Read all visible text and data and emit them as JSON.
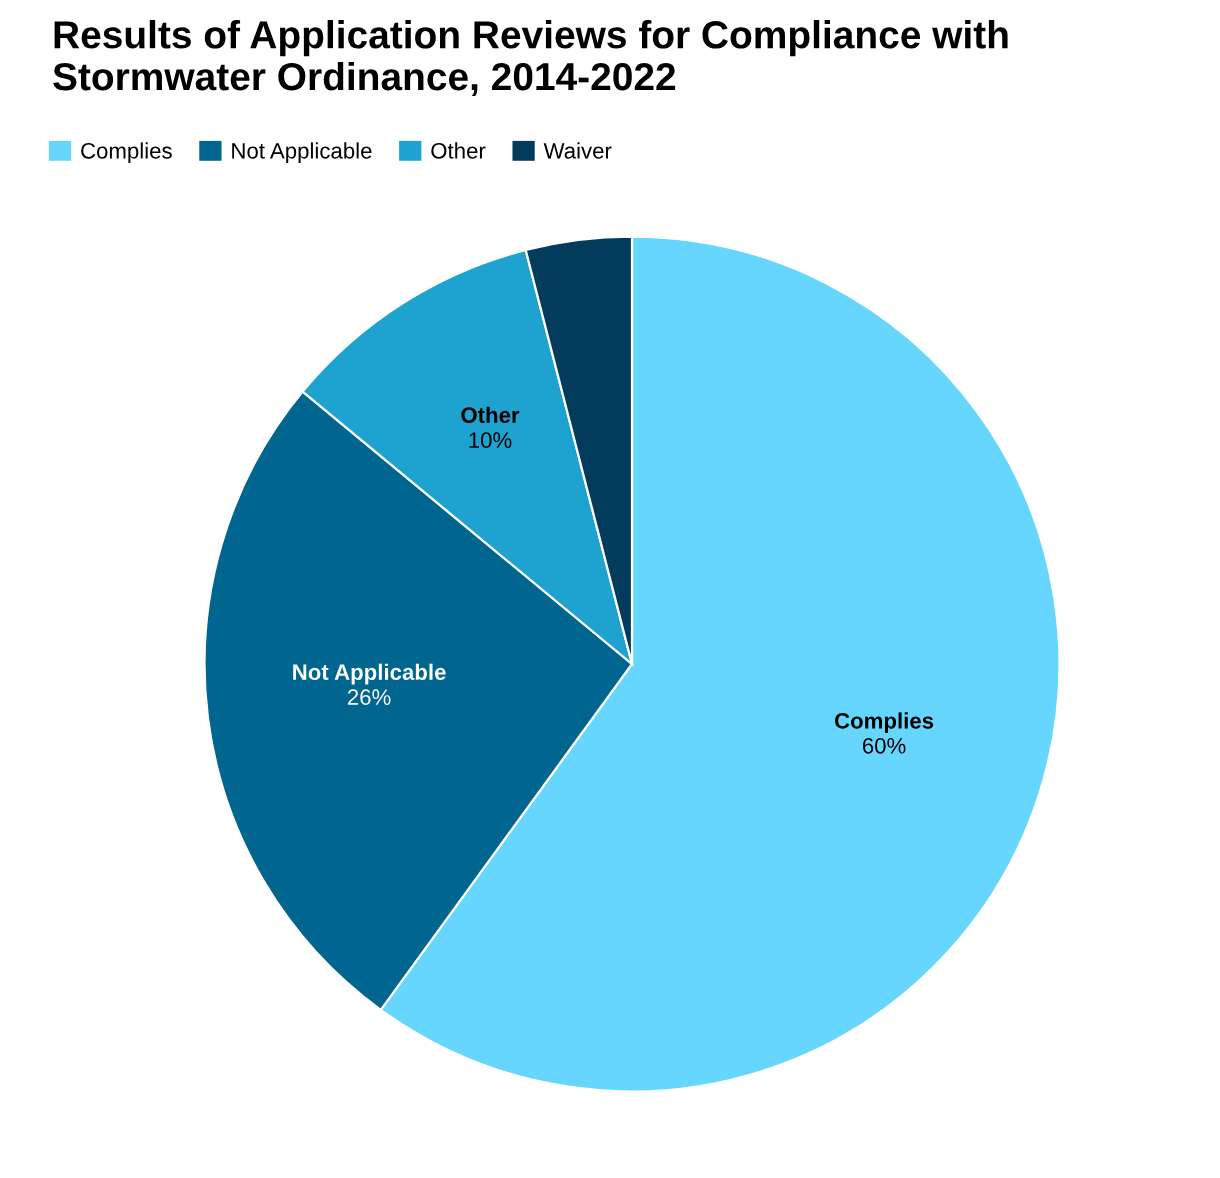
{
  "chart_data": {
    "type": "pie",
    "title": "Results of Application Reviews for Compliance with Stormwater Ordinance, 2014-2022",
    "categories": [
      "Complies",
      "Not Applicable",
      "Other",
      "Waiver"
    ],
    "values": [
      60,
      26,
      10,
      4
    ],
    "colors": [
      "#66d6ff",
      "#006690",
      "#1ea2d0",
      "#023b5c"
    ],
    "value_labels": [
      "60%",
      "26%",
      "10%",
      null
    ],
    "legend": "top left"
  }
}
